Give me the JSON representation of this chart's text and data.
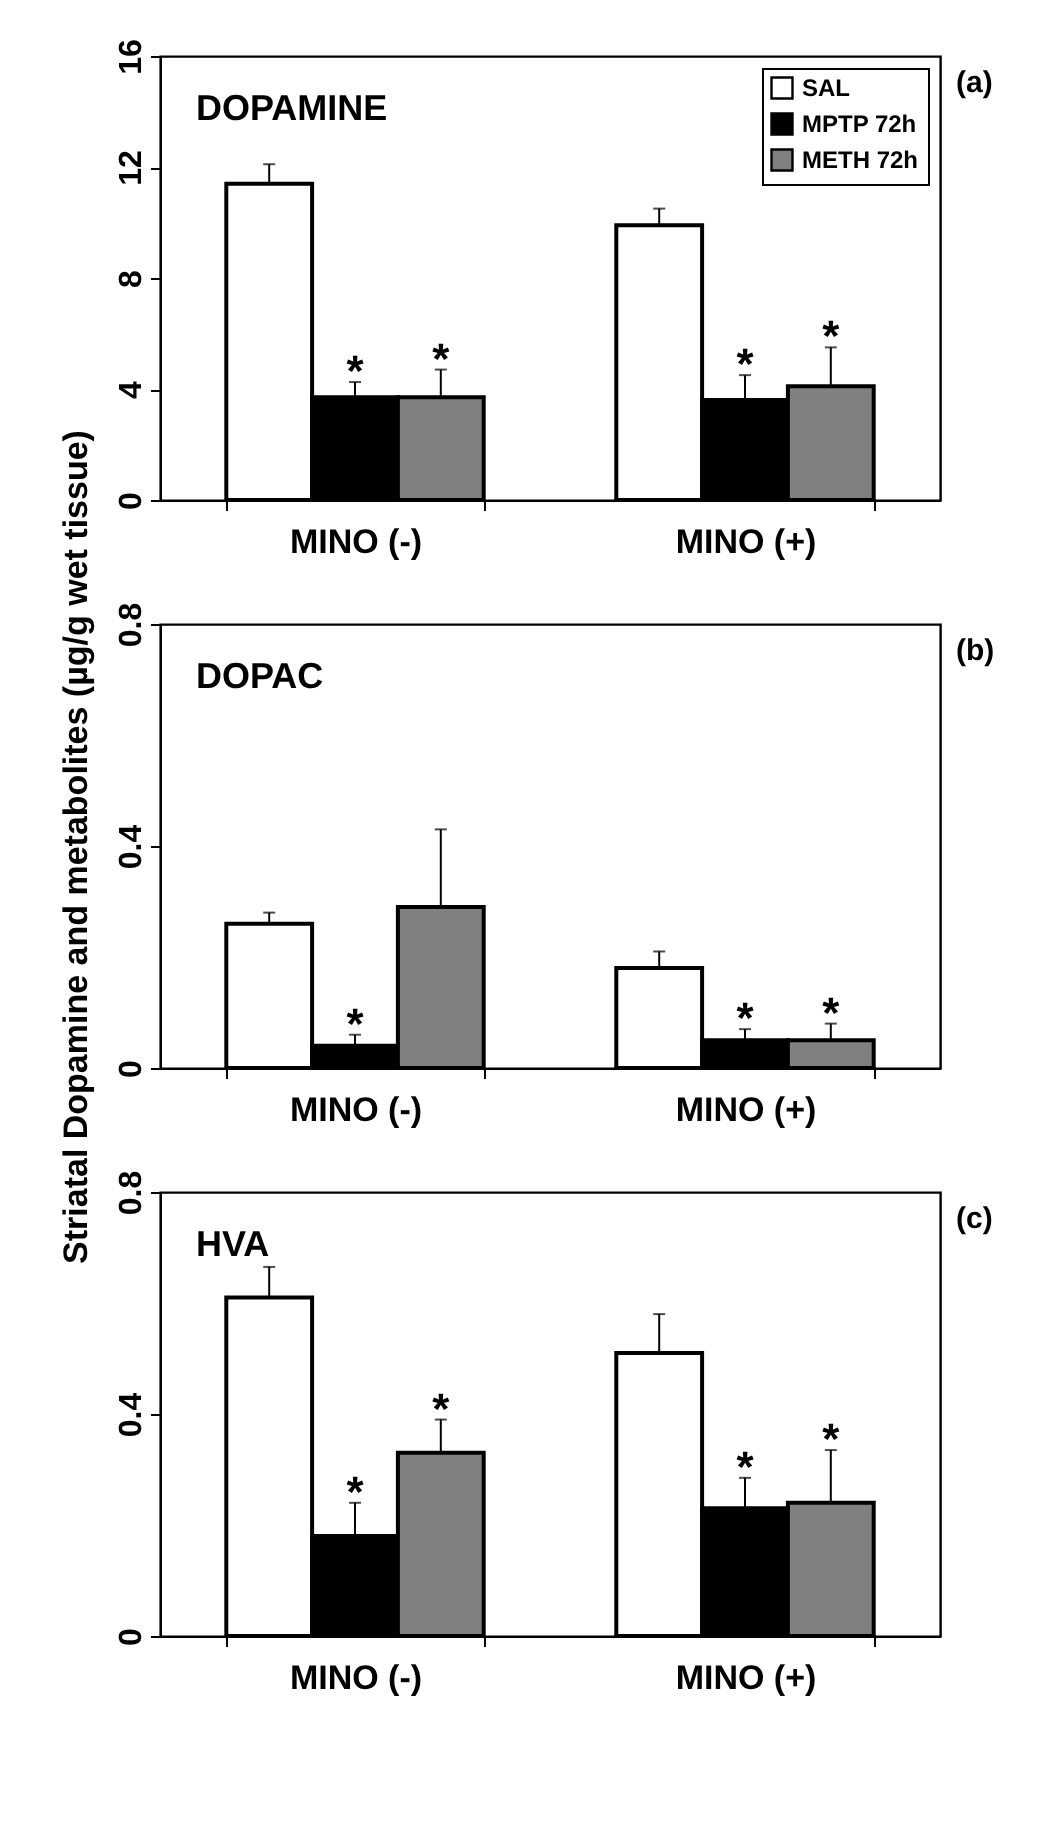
{
  "chart_data": [
    {
      "type": "bar",
      "title": "DOPAMINE",
      "annotations": [
        "(a)"
      ],
      "categories": [
        "MINO (-)",
        "MINO (+)"
      ],
      "ylim": [
        0,
        16
      ],
      "yticks": [
        0,
        4,
        8,
        12,
        16
      ],
      "grid": false,
      "legend": "top right",
      "series": [
        {
          "name": "SAL",
          "color": "#ffffff",
          "values": [
            11.4,
            9.9
          ],
          "errors": [
            0.7,
            0.6
          ]
        },
        {
          "name": "MPTP 72h",
          "color": "#000000",
          "values": [
            3.7,
            3.6
          ],
          "errors": [
            0.55,
            0.9
          ],
          "value_labels": [
            "*",
            "*"
          ]
        },
        {
          "name": "METH 72h",
          "color": "#808080",
          "values": [
            3.7,
            4.1
          ],
          "errors": [
            1.0,
            1.4
          ],
          "value_labels": [
            "*",
            "*"
          ]
        }
      ]
    },
    {
      "type": "bar",
      "title": "DOPAC",
      "annotations": [
        "(b)"
      ],
      "ylabel": "Striatal Dopamine and metabolites (µg/g wet tissue)",
      "categories": [
        "MINO (-)",
        "MINO (+)"
      ],
      "ylim": [
        0,
        0.8
      ],
      "yticks": [
        0,
        0.4,
        0.8
      ],
      "grid": false,
      "series": [
        {
          "color": "#ffffff",
          "values": [
            0.26,
            0.18
          ],
          "errors": [
            0.02,
            0.03
          ]
        },
        {
          "color": "#000000",
          "values": [
            0.04,
            0.05
          ],
          "errors": [
            0.02,
            0.02
          ],
          "value_labels": [
            "*",
            "*"
          ]
        },
        {
          "color": "#808080",
          "values": [
            0.29,
            0.05
          ],
          "errors": [
            0.14,
            0.03
          ],
          "value_labels": [
            null,
            "*"
          ]
        }
      ]
    },
    {
      "type": "bar",
      "title": "HVA",
      "annotations": [
        "(c)"
      ],
      "categories": [
        "MINO (-)",
        "MINO (+)"
      ],
      "ylim": [
        0,
        0.8
      ],
      "yticks": [
        0,
        0.4,
        0.8
      ],
      "grid": false,
      "series": [
        {
          "color": "#ffffff",
          "values": [
            0.61,
            0.51
          ],
          "errors": [
            0.055,
            0.07
          ]
        },
        {
          "color": "#000000",
          "values": [
            0.18,
            0.23
          ],
          "errors": [
            0.06,
            0.055
          ],
          "value_labels": [
            "*",
            "*"
          ]
        },
        {
          "color": "#808080",
          "values": [
            0.33,
            0.24
          ],
          "errors": [
            0.06,
            0.095
          ],
          "value_labels": [
            "*",
            "*"
          ]
        }
      ]
    }
  ]
}
